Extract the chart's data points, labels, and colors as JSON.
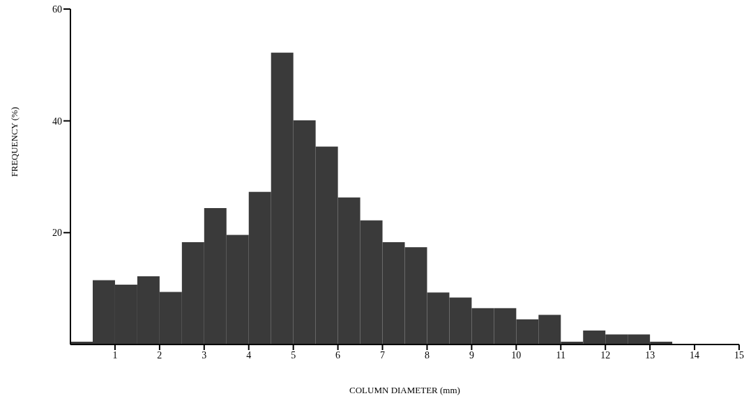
{
  "chart_data": {
    "type": "histogram",
    "xlabel": "COLUMN DIAMETER (mm)",
    "ylabel": "FREQUENCY (%)",
    "bins": [
      0,
      0.5,
      1,
      1.5,
      2,
      2.5,
      3,
      3.5,
      4,
      4.5,
      5,
      5.5,
      6,
      6.5,
      7,
      7.5,
      8,
      8.5,
      9,
      9.5,
      10,
      10.5,
      11,
      11.5,
      12,
      12.5,
      13,
      13.5,
      14,
      14.5,
      15
    ],
    "values": [
      0.5,
      11.5,
      10.7,
      12.2,
      9.4,
      18.3,
      24.4,
      19.6,
      27.3,
      52.2,
      40.1,
      35.4,
      26.3,
      22.2,
      18.3,
      17.4,
      9.3,
      8.4,
      6.5,
      6.5,
      4.5,
      5.3,
      0.5,
      2.5,
      1.8,
      1.8,
      0.5,
      0,
      0,
      0
    ],
    "color": "#3a3a3a",
    "xlim": [
      0,
      15
    ],
    "xticks": [
      1,
      2,
      3,
      4,
      5,
      6,
      7,
      8,
      9,
      10,
      11,
      12,
      13,
      14,
      15
    ],
    "ylim": [
      0,
      60
    ],
    "yticks": [
      20,
      40,
      60
    ],
    "grid": false
  }
}
